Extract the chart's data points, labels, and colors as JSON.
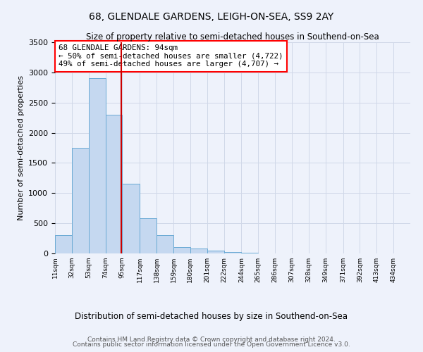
{
  "title": "68, GLENDALE GARDENS, LEIGH-ON-SEA, SS9 2AY",
  "subtitle": "Size of property relative to semi-detached houses in Southend-on-Sea",
  "xlabel": "Distribution of semi-detached houses by size in Southend-on-Sea",
  "ylabel": "Number of semi-detached properties",
  "footer_line1": "Contains HM Land Registry data © Crown copyright and database right 2024.",
  "footer_line2": "Contains public sector information licensed under the Open Government Licence v3.0.",
  "annotation_line1": "68 GLENDALE GARDENS: 94sqm",
  "annotation_line2": "← 50% of semi-detached houses are smaller (4,722)",
  "annotation_line3": "49% of semi-detached houses are larger (4,707) →",
  "property_size": 94,
  "bar_edges": [
    11,
    32,
    53,
    74,
    95,
    117,
    138,
    159,
    180,
    201,
    222,
    244,
    265,
    286,
    307,
    328,
    349,
    371,
    392,
    413,
    434
  ],
  "bar_heights": [
    300,
    1750,
    2900,
    2300,
    1150,
    580,
    300,
    100,
    80,
    50,
    20,
    10,
    5,
    2,
    1,
    0,
    0,
    0,
    0,
    0
  ],
  "bar_color": "#c5d8f0",
  "bar_edge_color": "#6aaad4",
  "red_line_color": "#cc0000",
  "grid_color": "#d0d8e8",
  "background_color": "#eef2fb",
  "ylim": [
    0,
    3500
  ],
  "yticks": [
    0,
    500,
    1000,
    1500,
    2000,
    2500,
    3000,
    3500
  ]
}
